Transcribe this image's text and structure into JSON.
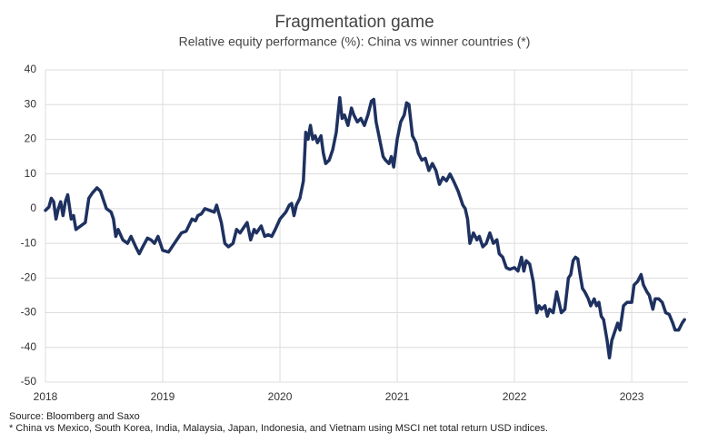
{
  "chart_data": {
    "type": "line",
    "title": "Fragmentation game",
    "subtitle": "Relative equity performance (%): China vs winner countries (*)",
    "source": "Source: Bloomberg and Saxo",
    "note": "* China vs Mexico, South Korea, India, Malaysia, Japan, Indonesia, and Vietnam using MSCI net total return USD indices.",
    "xlim": [
      2018,
      2023.48
    ],
    "xticks": [
      2018,
      2019,
      2020,
      2021,
      2022,
      2023
    ],
    "ylim": [
      -50,
      40
    ],
    "yticks": [
      -50,
      -40,
      -30,
      -20,
      -10,
      0,
      10,
      20,
      30,
      40
    ],
    "grid": true,
    "x": [
      2018.0,
      2018.03,
      2018.05,
      2018.07,
      2018.09,
      2018.11,
      2018.13,
      2018.15,
      2018.17,
      2018.19,
      2018.22,
      2018.24,
      2018.26,
      2018.3,
      2018.34,
      2018.37,
      2018.4,
      2018.44,
      2018.47,
      2018.52,
      2018.56,
      2018.58,
      2018.6,
      2018.62,
      2018.66,
      2018.7,
      2018.73,
      2018.77,
      2018.8,
      2018.83,
      2018.87,
      2018.9,
      2018.93,
      2018.96,
      2019.0,
      2019.05,
      2019.08,
      2019.12,
      2019.16,
      2019.2,
      2019.25,
      2019.28,
      2019.3,
      2019.33,
      2019.36,
      2019.4,
      2019.44,
      2019.46,
      2019.5,
      2019.53,
      2019.56,
      2019.6,
      2019.63,
      2019.66,
      2019.7,
      2019.72,
      2019.75,
      2019.78,
      2019.8,
      2019.84,
      2019.87,
      2019.9,
      2019.93,
      2019.96,
      2020.0,
      2020.05,
      2020.08,
      2020.1,
      2020.12,
      2020.14,
      2020.17,
      2020.2,
      2020.22,
      2020.24,
      2020.26,
      2020.28,
      2020.3,
      2020.32,
      2020.35,
      2020.37,
      2020.39,
      2020.42,
      2020.45,
      2020.48,
      2020.51,
      2020.53,
      2020.55,
      2020.58,
      2020.61,
      2020.63,
      2020.66,
      2020.69,
      2020.72,
      2020.75,
      2020.78,
      2020.8,
      2020.82,
      2020.85,
      2020.88,
      2020.9,
      2020.93,
      2020.95,
      2020.97,
      2021.0,
      2021.03,
      2021.06,
      2021.08,
      2021.1,
      2021.13,
      2021.16,
      2021.18,
      2021.21,
      2021.24,
      2021.27,
      2021.3,
      2021.33,
      2021.36,
      2021.39,
      2021.42,
      2021.45,
      2021.48,
      2021.52,
      2021.56,
      2021.58,
      2021.6,
      2021.62,
      2021.65,
      2021.68,
      2021.7,
      2021.73,
      2021.76,
      2021.79,
      2021.82,
      2021.85,
      2021.87,
      2021.9,
      2021.93,
      2021.96,
      2022.0,
      2022.03,
      2022.06,
      2022.08,
      2022.1,
      2022.13,
      2022.16,
      2022.19,
      2022.21,
      2022.23,
      2022.26,
      2022.28,
      2022.3,
      2022.33,
      2022.36,
      2022.38,
      2022.4,
      2022.43,
      2022.46,
      2022.48,
      2022.5,
      2022.52,
      2022.54,
      2022.56,
      2022.58,
      2022.6,
      2022.63,
      2022.65,
      2022.68,
      2022.7,
      2022.72,
      2022.74,
      2022.76,
      2022.79,
      2022.81,
      2022.83,
      2022.85,
      2022.88,
      2022.9,
      2022.93,
      2022.96,
      2023.0,
      2023.02,
      2023.05,
      2023.08,
      2023.1,
      2023.13,
      2023.15,
      2023.18,
      2023.2,
      2023.23,
      2023.26,
      2023.29,
      2023.32,
      2023.35,
      2023.37,
      2023.4,
      2023.43,
      2023.45
    ],
    "series": [
      {
        "name": "China vs winner countries",
        "color": "#1e3160",
        "values": [
          -0.5,
          0.5,
          3,
          2,
          -3,
          0,
          2,
          -2,
          2,
          4,
          -3,
          -2,
          -6,
          -5,
          -4,
          3,
          4.5,
          6,
          5,
          0,
          -1,
          -3,
          -8,
          -6,
          -9,
          -10,
          -8,
          -11,
          -13,
          -11,
          -8.5,
          -9,
          -10,
          -8,
          -12,
          -12.5,
          -11,
          -9,
          -7,
          -6.5,
          -3,
          -3.5,
          -2,
          -1.5,
          0,
          -0.5,
          -1,
          1,
          -4,
          -10,
          -11,
          -10,
          -6,
          -7,
          -5,
          -4,
          -9,
          -6,
          -7,
          -5,
          -8,
          -7.5,
          -8,
          -6,
          -3,
          -1,
          1,
          1.5,
          -2,
          1,
          3,
          8,
          22,
          20,
          24,
          20,
          21,
          19,
          21,
          16,
          13,
          14,
          17,
          22,
          32,
          26,
          27,
          24,
          29,
          27,
          25,
          26,
          24,
          27,
          31,
          31.5,
          25,
          20,
          15,
          14,
          13,
          15,
          12,
          20,
          25,
          27,
          30.5,
          30,
          21,
          19,
          16,
          14,
          14.5,
          11,
          13,
          11,
          7,
          9,
          8,
          10,
          8,
          5,
          1,
          0,
          -3,
          -10,
          -7,
          -9,
          -8,
          -11,
          -10,
          -7,
          -10,
          -9,
          -13,
          -14,
          -17,
          -17.5,
          -17,
          -18,
          -14,
          -18,
          -15,
          -16,
          -21,
          -30,
          -28,
          -29,
          -28,
          -31,
          -29,
          -30,
          -24,
          -27,
          -30,
          -29,
          -20,
          -19,
          -15,
          -14,
          -14.5,
          -19,
          -23,
          -24,
          -26,
          -28,
          -26,
          -28,
          -27,
          -31,
          -32,
          -38,
          -43,
          -38,
          -36,
          -33,
          -35,
          -28,
          -27,
          -27,
          -22,
          -21,
          -19,
          -22,
          -24,
          -25,
          -29,
          -26,
          -26,
          -27,
          -30,
          -30.5,
          -33,
          -35,
          -35,
          -33,
          -32
        ]
      }
    ]
  }
}
